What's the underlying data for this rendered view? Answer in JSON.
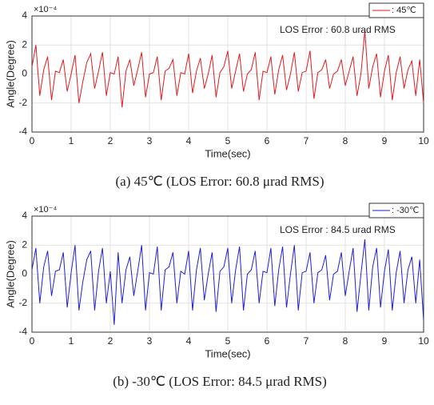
{
  "chart_data": [
    {
      "type": "line",
      "xlabel": "Time(sec)",
      "ylabel": "Angle(Degree)",
      "y_multiplier": "×10⁻⁴",
      "annotation": "LOS Error : 60.8 urad RMS",
      "caption": "(a) 45℃  (LOS Error: 60.8  μrad  RMS)",
      "xlim": [
        0,
        10
      ],
      "ylim": [
        -4,
        4
      ],
      "xticks": [
        0,
        1,
        2,
        3,
        4,
        5,
        6,
        7,
        8,
        9,
        10
      ],
      "yticks": [
        -4,
        -2,
        0,
        2,
        4
      ],
      "grid": true,
      "legend": "upper right",
      "x": [
        0,
        0.1,
        0.2,
        0.3,
        0.4,
        0.5,
        0.6,
        0.7,
        0.8,
        0.9,
        1,
        1.1,
        1.2,
        1.3,
        1.4,
        1.5,
        1.6,
        1.7,
        1.8,
        1.9,
        2,
        2.1,
        2.2,
        2.3,
        2.4,
        2.5,
        2.6,
        2.7,
        2.8,
        2.9,
        3,
        3.1,
        3.2,
        3.3,
        3.4,
        3.5,
        3.6,
        3.7,
        3.8,
        3.9,
        4,
        4.1,
        4.2,
        4.3,
        4.4,
        4.5,
        4.6,
        4.7,
        4.8,
        4.9,
        5,
        5.1,
        5.2,
        5.3,
        5.4,
        5.5,
        5.6,
        5.7,
        5.8,
        5.9,
        6,
        6.1,
        6.2,
        6.3,
        6.4,
        6.5,
        6.6,
        6.7,
        6.8,
        6.9,
        7,
        7.1,
        7.2,
        7.3,
        7.4,
        7.5,
        7.6,
        7.7,
        7.8,
        7.9,
        8,
        8.1,
        8.2,
        8.3,
        8.4,
        8.5,
        8.6,
        8.7,
        8.8,
        8.9,
        9,
        9.1,
        9.2,
        9.3,
        9.4,
        9.5,
        9.6,
        9.7,
        9.8,
        9.9,
        10
      ],
      "series": [
        {
          "name": ": 45℃",
          "color": "#e31a1c",
          "values": [
            0.5,
            2.0,
            -1.5,
            0.3,
            1.2,
            -1.8,
            0.2,
            0.1,
            1.0,
            -1.2,
            0.0,
            1.3,
            -2.0,
            -0.5,
            0.8,
            1.4,
            -1.0,
            0.2,
            1.5,
            -1.5,
            0.1,
            0.0,
            1.2,
            -2.3,
            0.2,
            1.0,
            -0.8,
            0.3,
            1.5,
            -1.6,
            0.0,
            0.1,
            1.2,
            -1.8,
            0.2,
            0.4,
            1.0,
            -1.5,
            0.1,
            0.0,
            1.4,
            -1.3,
            0.2,
            1.1,
            -1.0,
            0.0,
            1.3,
            -1.6,
            0.1,
            0.5,
            1.6,
            -1.0,
            0.2,
            1.4,
            -1.2,
            0.0,
            0.3,
            1.5,
            -1.8,
            0.2,
            0.1,
            1.2,
            -1.4,
            0.3,
            1.3,
            -1.1,
            0.0,
            1.5,
            -1.2,
            0.1,
            0.2,
            1.6,
            -1.7,
            0.1,
            0.3,
            1.0,
            -1.0,
            0.0,
            0.2,
            1.0,
            -0.8,
            0.2,
            1.2,
            -1.5,
            0.0,
            3.0,
            -1.0,
            0.5,
            1.4,
            -1.6,
            0.2,
            1.3,
            -1.8,
            0.1,
            1.2,
            -1.0,
            0.3,
            0.9,
            -1.5,
            1.0,
            -2.0
          ]
        }
      ]
    },
    {
      "type": "line",
      "xlabel": "Time(sec)",
      "ylabel": "Angle(Degree)",
      "y_multiplier": "×10⁻⁴",
      "annotation": "LOS Error : 84.5 urad RMS",
      "caption": "(b) -30℃  (LOS Error: 84.5  μrad  RMS)",
      "xlim": [
        0,
        10
      ],
      "ylim": [
        -4,
        4
      ],
      "xticks": [
        0,
        1,
        2,
        3,
        4,
        5,
        6,
        7,
        8,
        9,
        10
      ],
      "yticks": [
        -4,
        -2,
        0,
        2,
        4
      ],
      "grid": true,
      "legend": "upper right",
      "x": [
        0,
        0.1,
        0.2,
        0.3,
        0.4,
        0.5,
        0.6,
        0.7,
        0.8,
        0.9,
        1,
        1.1,
        1.2,
        1.3,
        1.4,
        1.5,
        1.6,
        1.7,
        1.8,
        1.9,
        2,
        2.1,
        2.2,
        2.3,
        2.4,
        2.5,
        2.6,
        2.7,
        2.8,
        2.9,
        3,
        3.1,
        3.2,
        3.3,
        3.4,
        3.5,
        3.6,
        3.7,
        3.8,
        3.9,
        4,
        4.1,
        4.2,
        4.3,
        4.4,
        4.5,
        4.6,
        4.7,
        4.8,
        4.9,
        5,
        5.1,
        5.2,
        5.3,
        5.4,
        5.5,
        5.6,
        5.7,
        5.8,
        5.9,
        6,
        6.1,
        6.2,
        6.3,
        6.4,
        6.5,
        6.6,
        6.7,
        6.8,
        6.9,
        7,
        7.1,
        7.2,
        7.3,
        7.4,
        7.5,
        7.6,
        7.7,
        7.8,
        7.9,
        8,
        8.1,
        8.2,
        8.3,
        8.4,
        8.5,
        8.6,
        8.7,
        8.8,
        8.9,
        9,
        9.1,
        9.2,
        9.3,
        9.4,
        9.5,
        9.6,
        9.7,
        9.8,
        9.9,
        10
      ],
      "series": [
        {
          "name": ": -30℃",
          "color": "#1f1fd6",
          "values": [
            0.3,
            1.8,
            -2.0,
            0.5,
            1.6,
            -1.5,
            0.2,
            0.3,
            1.5,
            -2.3,
            0.1,
            2.0,
            -2.5,
            -0.5,
            1.0,
            1.6,
            -2.5,
            0.2,
            1.8,
            -2.0,
            0.2,
            -3.5,
            1.5,
            -2.0,
            0.3,
            1.2,
            -1.5,
            0.2,
            2.0,
            -2.5,
            0.1,
            0.0,
            1.9,
            -2.5,
            0.3,
            0.5,
            1.5,
            -2.0,
            0.2,
            0.0,
            1.6,
            -2.5,
            0.3,
            1.8,
            -1.8,
            0.0,
            1.5,
            -2.6,
            0.2,
            0.5,
            1.8,
            -2.0,
            0.3,
            1.9,
            -2.5,
            0.0,
            0.3,
            1.6,
            -2.0,
            0.2,
            0.1,
            1.8,
            -2.2,
            0.3,
            1.9,
            -2.3,
            0.0,
            2.0,
            -2.5,
            0.1,
            0.2,
            1.5,
            -2.0,
            0.1,
            0.3,
            1.3,
            -1.8,
            0.0,
            0.2,
            1.5,
            -1.5,
            0.2,
            1.8,
            -2.6,
            0.0,
            2.4,
            -2.5,
            0.5,
            1.8,
            -2.3,
            0.2,
            1.7,
            -2.5,
            0.1,
            1.6,
            -2.0,
            0.3,
            1.2,
            -2.0,
            1.0,
            -3.2
          ]
        }
      ]
    }
  ]
}
